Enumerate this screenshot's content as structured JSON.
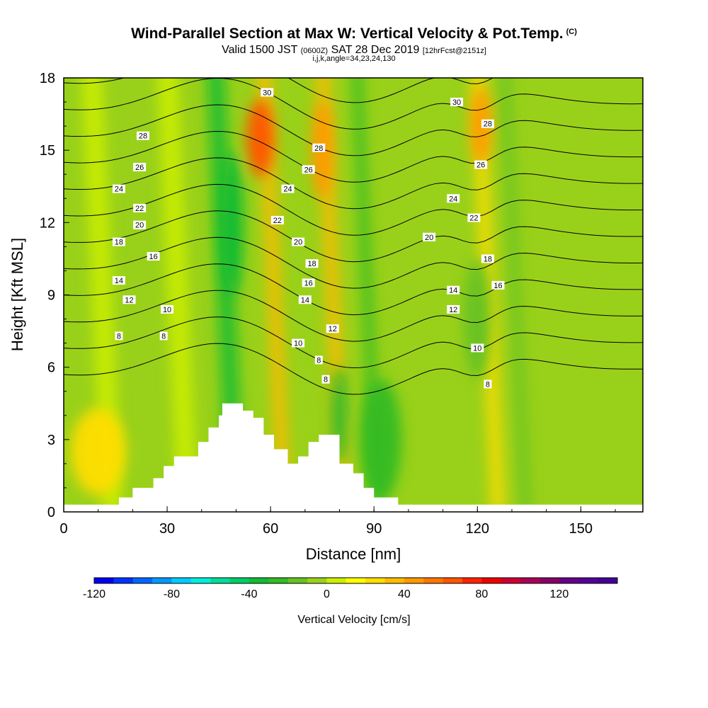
{
  "titles": {
    "main": "Wind-Parallel Section at Max W: Vertical Velocity & Pot.Temp.",
    "main_badge": "(C)",
    "valid_prefix": "Valid 1500 JST",
    "valid_utc": "(0600Z)",
    "valid_date": "SAT 28 Dec 2019",
    "valid_fcst": "[12hrFcst@2151z]",
    "indices": "i,j,k,angle=34,23,24,130"
  },
  "chart_data": {
    "type": "heatmap",
    "xlabel": "Distance [nm]",
    "ylabel": "Height [Kft MSL]",
    "xlim": [
      0,
      168
    ],
    "ylim": [
      0,
      18
    ],
    "x_ticks": [
      0,
      30,
      60,
      90,
      120,
      150
    ],
    "y_ticks": [
      0,
      3,
      6,
      9,
      12,
      15,
      18
    ],
    "field": "Vertical Velocity",
    "contour_field": "Potential Temperature (C)",
    "contour_levels": [
      8,
      10,
      12,
      14,
      16,
      18,
      20,
      22,
      24,
      26,
      28,
      30
    ],
    "contour_labels": [
      {
        "x": 16,
        "y": 7.3,
        "text": "8"
      },
      {
        "x": 29,
        "y": 7.3,
        "text": "8"
      },
      {
        "x": 76,
        "y": 5.5,
        "text": "8"
      },
      {
        "x": 74,
        "y": 6.3,
        "text": "8"
      },
      {
        "x": 123,
        "y": 5.3,
        "text": "8"
      },
      {
        "x": 30,
        "y": 8.4,
        "text": "10"
      },
      {
        "x": 68,
        "y": 7.0,
        "text": "10"
      },
      {
        "x": 120,
        "y": 6.8,
        "text": "10"
      },
      {
        "x": 19,
        "y": 8.8,
        "text": "12"
      },
      {
        "x": 78,
        "y": 7.6,
        "text": "12"
      },
      {
        "x": 113,
        "y": 8.4,
        "text": "12"
      },
      {
        "x": 16,
        "y": 9.6,
        "text": "14"
      },
      {
        "x": 70,
        "y": 8.8,
        "text": "14"
      },
      {
        "x": 113,
        "y": 9.2,
        "text": "14"
      },
      {
        "x": 26,
        "y": 10.6,
        "text": "16"
      },
      {
        "x": 71,
        "y": 9.5,
        "text": "16"
      },
      {
        "x": 126,
        "y": 9.4,
        "text": "16"
      },
      {
        "x": 16,
        "y": 11.2,
        "text": "18"
      },
      {
        "x": 72,
        "y": 10.3,
        "text": "18"
      },
      {
        "x": 123,
        "y": 10.5,
        "text": "18"
      },
      {
        "x": 22,
        "y": 11.9,
        "text": "20"
      },
      {
        "x": 68,
        "y": 11.2,
        "text": "20"
      },
      {
        "x": 106,
        "y": 11.4,
        "text": "20"
      },
      {
        "x": 22,
        "y": 12.6,
        "text": "22"
      },
      {
        "x": 62,
        "y": 12.1,
        "text": "22"
      },
      {
        "x": 119,
        "y": 12.2,
        "text": "22"
      },
      {
        "x": 16,
        "y": 13.4,
        "text": "24"
      },
      {
        "x": 65,
        "y": 13.4,
        "text": "24"
      },
      {
        "x": 113,
        "y": 13.0,
        "text": "24"
      },
      {
        "x": 22,
        "y": 14.3,
        "text": "26"
      },
      {
        "x": 71,
        "y": 14.2,
        "text": "26"
      },
      {
        "x": 121,
        "y": 14.4,
        "text": "26"
      },
      {
        "x": 23,
        "y": 15.6,
        "text": "28"
      },
      {
        "x": 74,
        "y": 15.1,
        "text": "28"
      },
      {
        "x": 123,
        "y": 16.1,
        "text": "28"
      },
      {
        "x": 59,
        "y": 17.4,
        "text": "30"
      },
      {
        "x": 114,
        "y": 17.0,
        "text": "30"
      }
    ],
    "terrain": [
      [
        0,
        0.3
      ],
      [
        16,
        0.3
      ],
      [
        16,
        0.6
      ],
      [
        20,
        0.6
      ],
      [
        20,
        1.0
      ],
      [
        26,
        1.0
      ],
      [
        26,
        1.4
      ],
      [
        29,
        1.4
      ],
      [
        29,
        1.9
      ],
      [
        32,
        1.9
      ],
      [
        32,
        2.3
      ],
      [
        39,
        2.3
      ],
      [
        39,
        2.9
      ],
      [
        42,
        2.9
      ],
      [
        42,
        3.5
      ],
      [
        45,
        3.5
      ],
      [
        45,
        4.0
      ],
      [
        46,
        4.0
      ],
      [
        46,
        4.5
      ],
      [
        52,
        4.5
      ],
      [
        52,
        4.2
      ],
      [
        55,
        4.2
      ],
      [
        55,
        3.9
      ],
      [
        58,
        3.9
      ],
      [
        58,
        3.2
      ],
      [
        61,
        3.2
      ],
      [
        61,
        2.6
      ],
      [
        65,
        2.6
      ],
      [
        65,
        2.0
      ],
      [
        68,
        2.0
      ],
      [
        68,
        2.3
      ],
      [
        71,
        2.3
      ],
      [
        71,
        2.9
      ],
      [
        74,
        2.9
      ],
      [
        74,
        3.2
      ],
      [
        80,
        3.2
      ],
      [
        80,
        2.0
      ],
      [
        84,
        2.0
      ],
      [
        84,
        1.6
      ],
      [
        87,
        1.6
      ],
      [
        87,
        1.0
      ],
      [
        90,
        1.0
      ],
      [
        90,
        0.6
      ],
      [
        97,
        0.6
      ],
      [
        97,
        0.3
      ],
      [
        168,
        0.3
      ]
    ],
    "velocity_cells": [
      {
        "x": 57,
        "y": 15.5,
        "rx": 4,
        "ry": 1.6,
        "value": 60
      },
      {
        "x": 75,
        "y": 15.0,
        "rx": 3,
        "ry": 2.0,
        "value": 40
      },
      {
        "x": 121,
        "y": 16.0,
        "rx": 3,
        "ry": 1.6,
        "value": 40
      },
      {
        "x": 49,
        "y": 12.0,
        "rx": 3,
        "ry": 3.0,
        "value": -40
      },
      {
        "x": 80,
        "y": 4.0,
        "rx": 2,
        "ry": 2.0,
        "value": -40
      },
      {
        "x": 92,
        "y": 3.0,
        "rx": 6,
        "ry": 2.5,
        "value": -30
      },
      {
        "x": 120,
        "y": 8.0,
        "rx": 4,
        "ry": 2.5,
        "value": -20
      },
      {
        "x": 10,
        "y": 2.5,
        "rx": 8,
        "ry": 1.8,
        "value": 20
      }
    ]
  },
  "colorbar": {
    "title": "Vertical Velocity [cm/s]",
    "min": -120,
    "max": 150,
    "step": 10,
    "tick_values": [
      -120,
      -80,
      -40,
      0,
      40,
      80,
      120
    ],
    "tick_labels": [
      "-120",
      "-80",
      "-40",
      "0",
      "40",
      "80",
      "120"
    ],
    "colors": [
      "#0000ee",
      "#0033ff",
      "#0066ff",
      "#0099ff",
      "#00ccff",
      "#00eedd",
      "#00dd99",
      "#00cc66",
      "#11bb33",
      "#33bb22",
      "#66c222",
      "#99d11a",
      "#ccee00",
      "#ffff00",
      "#ffdd00",
      "#ffbb00",
      "#ff9900",
      "#ff7700",
      "#ff5500",
      "#ff2200",
      "#ee0000",
      "#cc0033",
      "#aa0055",
      "#880066",
      "#660088",
      "#550099",
      "#440099"
    ]
  }
}
